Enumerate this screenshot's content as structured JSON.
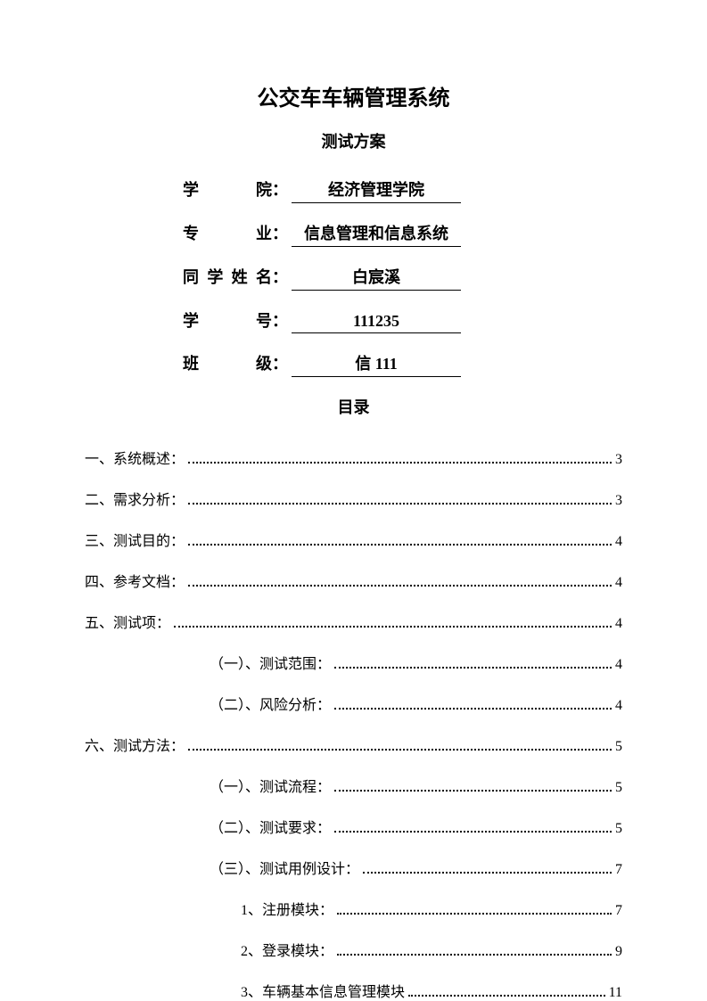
{
  "title": "公交车车辆管理系统",
  "subtitle": "测试方案",
  "info": {
    "college_label": "学　　院",
    "college_value": "经济管理学院",
    "major_label": "专　　业",
    "major_value": "信息管理和信息系统",
    "name_label": "同学姓名",
    "name_value": "白宸溪",
    "id_label": "学　　号",
    "id_value": "111235",
    "class_label": "班　　级",
    "class_value": "信 111"
  },
  "toc_title": "目录",
  "toc": [
    {
      "level": 1,
      "label": "一、系统概述：",
      "page": "3"
    },
    {
      "level": 1,
      "label": "二、需求分析：",
      "page": "3"
    },
    {
      "level": 1,
      "label": "三、测试目的：",
      "page": "4"
    },
    {
      "level": 1,
      "label": "四、参考文档：",
      "page": "4"
    },
    {
      "level": 1,
      "label": "五、测试项：",
      "page": "4"
    },
    {
      "level": 2,
      "label": "（一）、测试范围：",
      "page": "4"
    },
    {
      "level": 2,
      "label": "（二）、风险分析：",
      "page": "4"
    },
    {
      "level": 1,
      "label": "六、测试方法：",
      "page": "5"
    },
    {
      "level": 2,
      "label": "（一）、测试流程：",
      "page": "5"
    },
    {
      "level": 2,
      "label": "（二）、测试要求：",
      "page": "5"
    },
    {
      "level": 2,
      "label": "（三）、测试用例设计：",
      "page": "7"
    },
    {
      "level": 3,
      "label": "1、注册模块：",
      "page": "7"
    },
    {
      "level": 3,
      "label": "2、登录模块：",
      "page": "9"
    },
    {
      "level": 3,
      "label": "3、车辆基本信息管理模块",
      "page": "11"
    }
  ]
}
